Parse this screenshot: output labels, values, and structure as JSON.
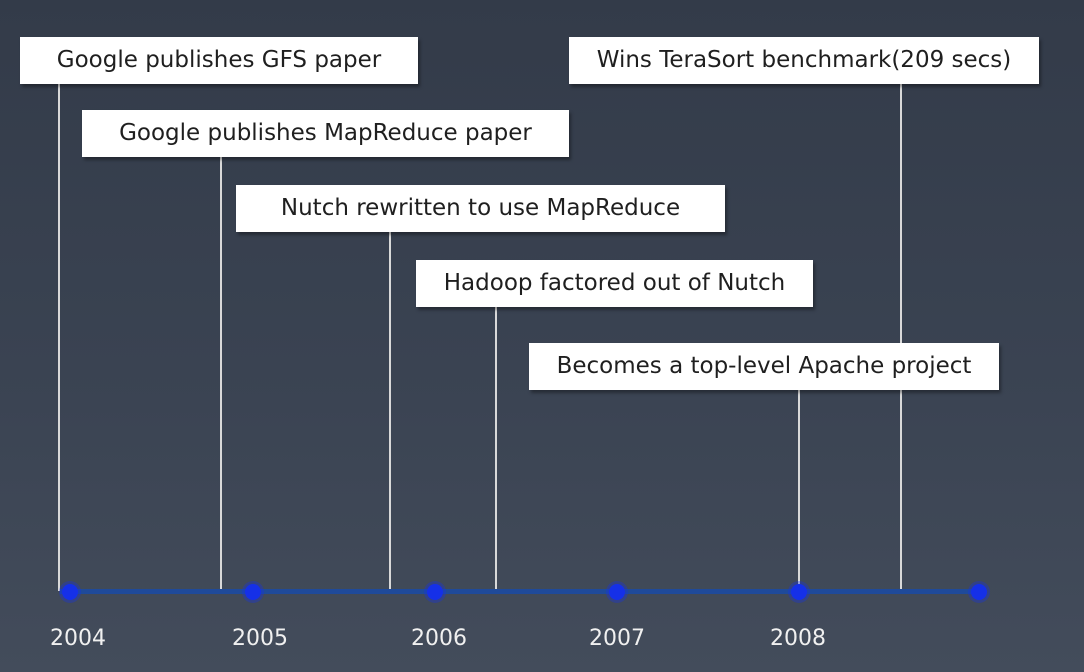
{
  "timeline": {
    "axis_color": "#1f4a9a",
    "dot_color": "#1530e8",
    "connector_color": "#d9d9d9",
    "years": [
      "2004",
      "2005",
      "2006",
      "2007",
      "2008"
    ],
    "events": [
      {
        "label": "Google publishes GFS paper"
      },
      {
        "label": "Google publishes MapReduce paper"
      },
      {
        "label": "Nutch rewritten to use MapReduce"
      },
      {
        "label": "Hadoop factored out of Nutch"
      },
      {
        "label": "Becomes a top-level Apache project"
      },
      {
        "label": "Wins TeraSort benchmark(209 secs)"
      }
    ]
  }
}
